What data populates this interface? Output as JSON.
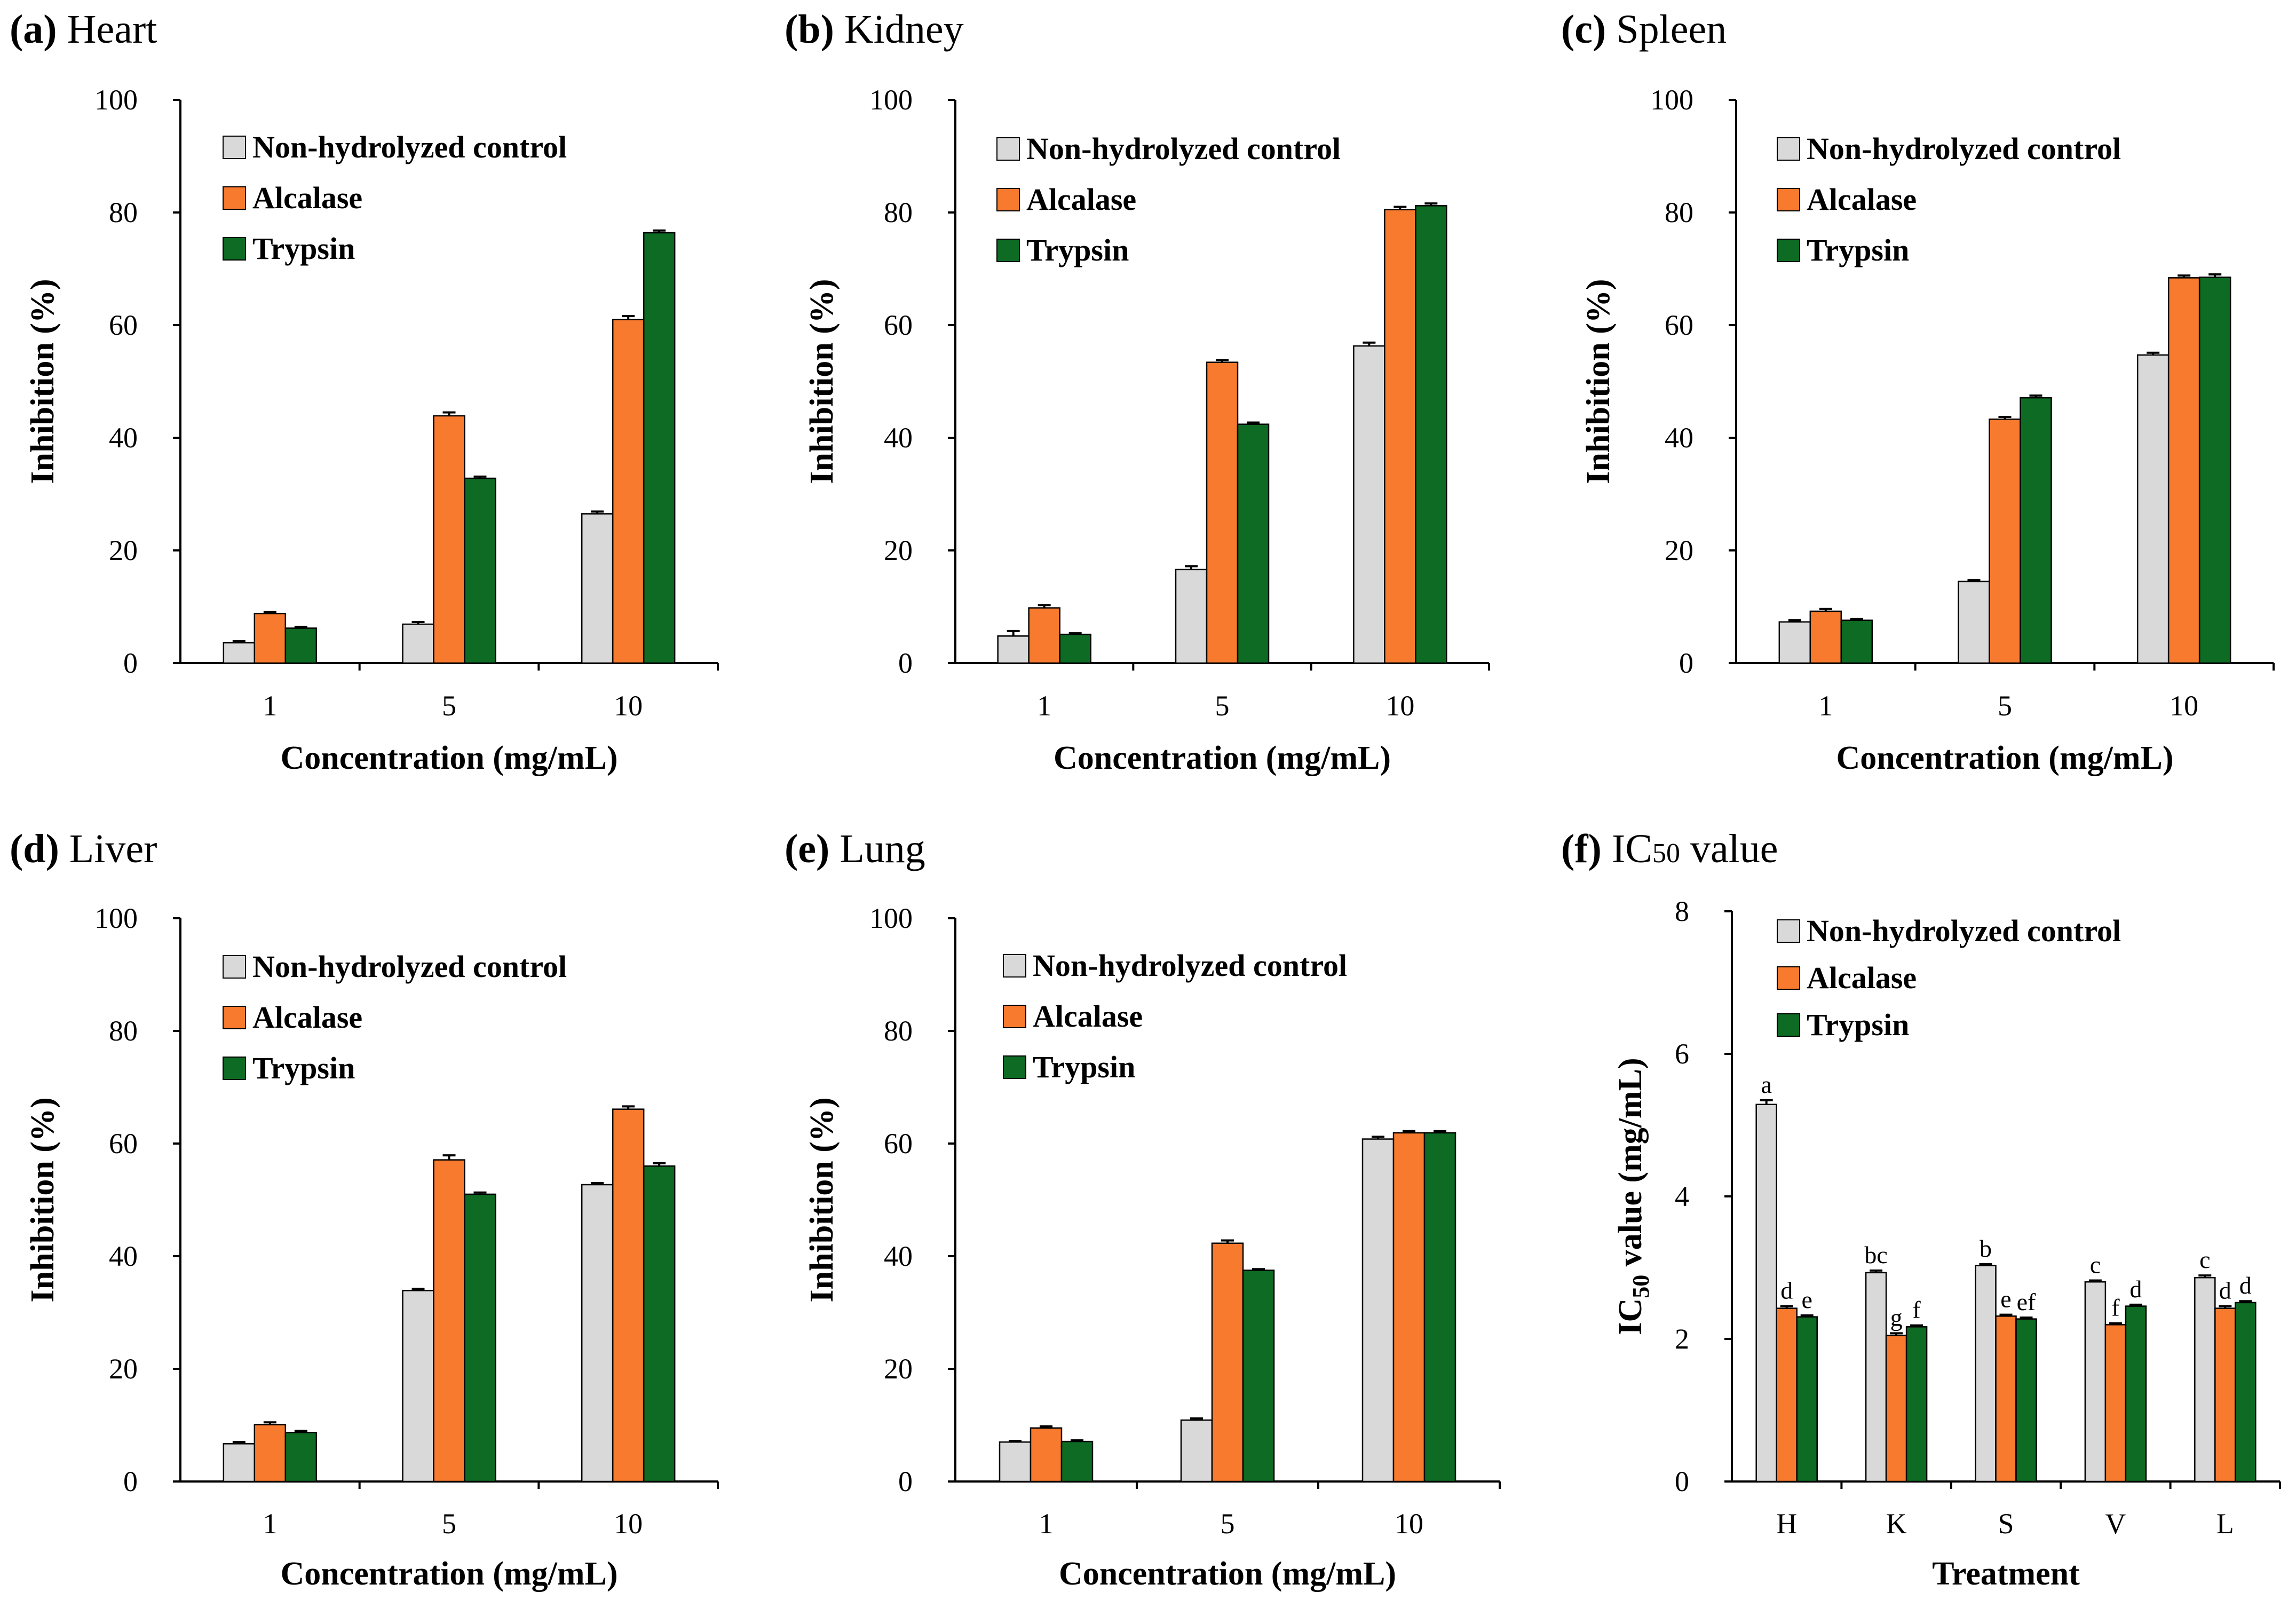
{
  "colors": {
    "control": "#d9d9d9",
    "alcalase": "#f77a2f",
    "trypsin": "#0d6b23"
  },
  "legend": [
    "Non-hydrolyzed control",
    "Alcalase",
    "Trypsin"
  ],
  "chart_data": [
    {
      "id": "a",
      "type": "bar",
      "panel_letter": "(a)",
      "title": "Heart",
      "categories": [
        "1",
        "5",
        "10"
      ],
      "series": [
        {
          "name": "Non-hydrolyzed control",
          "values": [
            3.6,
            6.9,
            26.5
          ],
          "errors": [
            0.3,
            0.4,
            0.4
          ]
        },
        {
          "name": "Alcalase",
          "values": [
            8.8,
            43.9,
            61.0
          ],
          "errors": [
            0.3,
            0.6,
            0.6
          ]
        },
        {
          "name": "Trypsin",
          "values": [
            6.2,
            32.8,
            76.4
          ],
          "errors": [
            0.2,
            0.3,
            0.4
          ]
        }
      ],
      "xlabel": "Concentration (mg/mL)",
      "ylabel": "Inhibition (%)",
      "ylim": [
        0,
        100
      ],
      "yticks": [
        "0",
        "20",
        "40",
        "60",
        "80",
        "100"
      ]
    },
    {
      "id": "b",
      "type": "bar",
      "panel_letter": "(b)",
      "title": "Kidney",
      "categories": [
        "1",
        "5",
        "10"
      ],
      "series": [
        {
          "name": "Non-hydrolyzed control",
          "values": [
            4.8,
            16.6,
            56.3
          ],
          "errors": [
            0.9,
            0.6,
            0.6
          ]
        },
        {
          "name": "Alcalase",
          "values": [
            9.8,
            53.4,
            80.5
          ],
          "errors": [
            0.5,
            0.4,
            0.5
          ]
        },
        {
          "name": "Trypsin",
          "values": [
            5.1,
            42.4,
            81.2
          ],
          "errors": [
            0.2,
            0.3,
            0.4
          ]
        }
      ],
      "xlabel": "Concentration (mg/mL)",
      "ylabel": "Inhibition (%)",
      "ylim": [
        0,
        100
      ],
      "yticks": [
        "0",
        "20",
        "40",
        "60",
        "80",
        "100"
      ]
    },
    {
      "id": "c",
      "type": "bar",
      "panel_letter": "(c)",
      "title": "Spleen",
      "categories": [
        "1",
        "5",
        "10"
      ],
      "series": [
        {
          "name": "Non-hydrolyzed control",
          "values": [
            7.3,
            14.5,
            54.7
          ],
          "errors": [
            0.3,
            0.2,
            0.4
          ]
        },
        {
          "name": "Alcalase",
          "values": [
            9.2,
            43.3,
            68.4
          ],
          "errors": [
            0.4,
            0.4,
            0.4
          ]
        },
        {
          "name": "Trypsin",
          "values": [
            7.6,
            47.1,
            68.5
          ],
          "errors": [
            0.2,
            0.4,
            0.5
          ]
        }
      ],
      "xlabel": "Concentration (mg/mL)",
      "ylabel": "Inhibition (%)",
      "ylim": [
        0,
        100
      ],
      "yticks": [
        "0",
        "20",
        "40",
        "60",
        "80",
        "100"
      ]
    },
    {
      "id": "d",
      "type": "bar",
      "panel_letter": "(d)",
      "title": "Liver",
      "categories": [
        "1",
        "5",
        "10"
      ],
      "series": [
        {
          "name": "Non-hydrolyzed control",
          "values": [
            6.7,
            33.9,
            52.7
          ],
          "errors": [
            0.3,
            0.3,
            0.3
          ]
        },
        {
          "name": "Alcalase",
          "values": [
            10.1,
            57.1,
            66.1
          ],
          "errors": [
            0.4,
            0.8,
            0.5
          ]
        },
        {
          "name": "Trypsin",
          "values": [
            8.7,
            51.0,
            56.0
          ],
          "errors": [
            0.3,
            0.3,
            0.5
          ]
        }
      ],
      "xlabel": "Concentration (mg/mL)",
      "ylabel": "Inhibition (%)",
      "ylim": [
        0,
        100
      ],
      "yticks": [
        "0",
        "20",
        "40",
        "60",
        "80",
        "100"
      ]
    },
    {
      "id": "e",
      "type": "bar",
      "panel_letter": "(e)",
      "title": "Lung",
      "categories": [
        "1",
        "5",
        "10"
      ],
      "series": [
        {
          "name": "Non-hydrolyzed control",
          "values": [
            7.0,
            10.9,
            60.8
          ],
          "errors": [
            0.2,
            0.3,
            0.4
          ]
        },
        {
          "name": "Alcalase",
          "values": [
            9.5,
            42.3,
            61.9
          ],
          "errors": [
            0.3,
            0.5,
            0.3
          ]
        },
        {
          "name": "Trypsin",
          "values": [
            7.1,
            37.5,
            61.9
          ],
          "errors": [
            0.2,
            0.2,
            0.3
          ]
        }
      ],
      "xlabel": "Concentration (mg/mL)",
      "ylabel": "Inhibition (%)",
      "ylim": [
        0,
        100
      ],
      "yticks": [
        "0",
        "20",
        "40",
        "60",
        "80",
        "100"
      ]
    },
    {
      "id": "f",
      "type": "bar",
      "panel_letter": "(f)",
      "title_prefix": "IC",
      "title_subscript": "50",
      "title_suffix": " value",
      "categories": [
        "H",
        "K",
        "S",
        "V",
        "L"
      ],
      "series": [
        {
          "name": "Non-hydrolyzed control",
          "values": [
            5.29,
            2.93,
            3.03,
            2.8,
            2.86
          ],
          "errors": [
            0.06,
            0.03,
            0.02,
            0.02,
            0.03
          ],
          "labels": [
            "a",
            "bc",
            "b",
            "c",
            "c"
          ]
        },
        {
          "name": "Alcalase",
          "values": [
            2.43,
            2.05,
            2.32,
            2.2,
            2.43
          ],
          "errors": [
            0.03,
            0.03,
            0.02,
            0.02,
            0.03
          ],
          "labels": [
            "d",
            "g",
            "e",
            "f",
            "d"
          ]
        },
        {
          "name": "Trypsin",
          "values": [
            2.31,
            2.17,
            2.28,
            2.46,
            2.51
          ],
          "errors": [
            0.02,
            0.02,
            0.02,
            0.02,
            0.02
          ],
          "labels": [
            "e",
            "f",
            "ef",
            "d",
            "d"
          ]
        }
      ],
      "xlabel": "Treatment",
      "ylabel_prefix": "IC",
      "ylabel_subscript": "50",
      "ylabel_suffix": " value (mg/mL)",
      "ylim": [
        0,
        8
      ],
      "yticks": [
        "0",
        "2",
        "4",
        "6",
        "8"
      ]
    }
  ]
}
